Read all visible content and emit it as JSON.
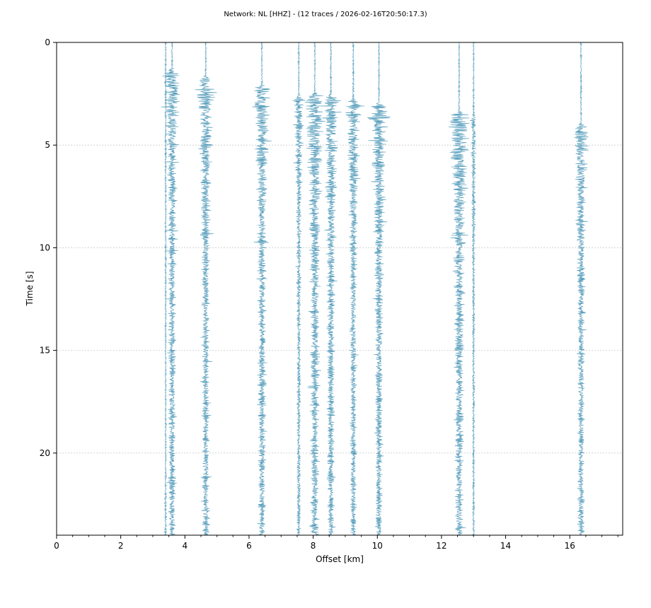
{
  "chart_data": {
    "type": "line",
    "title": "Network: NL [HHZ] - (12 traces / 2026-02-16T20:50:17.3)",
    "xlabel": "Offset [km]",
    "ylabel": "Time [s]",
    "xlim": [
      0,
      17.65
    ],
    "ylim": [
      24,
      0
    ],
    "x_ticks": [
      0,
      2,
      4,
      6,
      8,
      10,
      12,
      14,
      16
    ],
    "y_ticks": [
      0,
      5,
      10,
      15,
      20
    ],
    "grid": "horizontal",
    "trace_color": "#2e86ab",
    "series": [
      {
        "offset": 3.4,
        "onset": 22.0,
        "amplitude": 0.02
      },
      {
        "offset": 3.6,
        "onset": 1.2,
        "amplitude": 0.45
      },
      {
        "offset": 4.65,
        "onset": 1.6,
        "amplitude": 0.45
      },
      {
        "offset": 6.4,
        "onset": 2.0,
        "amplitude": 0.45
      },
      {
        "offset": 7.55,
        "onset": 2.4,
        "amplitude": 0.25
      },
      {
        "offset": 8.05,
        "onset": 2.4,
        "amplitude": 0.55
      },
      {
        "offset": 8.55,
        "onset": 2.5,
        "amplitude": 0.45
      },
      {
        "offset": 9.25,
        "onset": 2.7,
        "amplitude": 0.4
      },
      {
        "offset": 10.05,
        "onset": 2.9,
        "amplitude": 0.45
      },
      {
        "offset": 12.55,
        "onset": 3.3,
        "amplitude": 0.55
      },
      {
        "offset": 13.0,
        "onset": 3.4,
        "amplitude": 0.15
      },
      {
        "offset": 16.35,
        "onset": 3.9,
        "amplitude": 0.4
      }
    ]
  }
}
